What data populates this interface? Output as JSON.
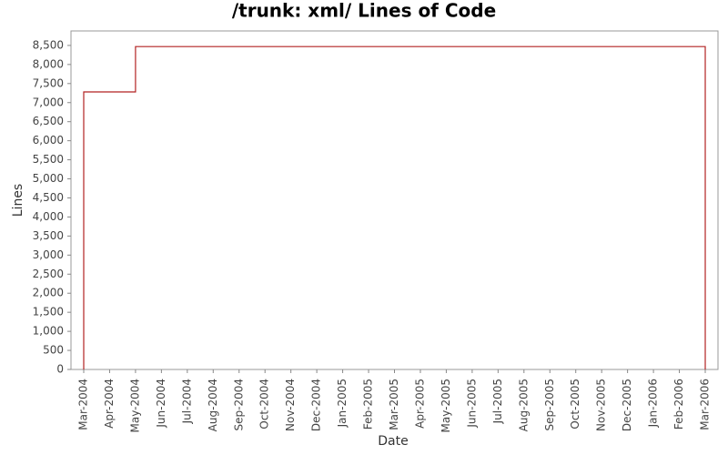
{
  "chart_data": {
    "type": "line",
    "title": "/trunk: xml/ Lines of Code",
    "x_label": "Date",
    "y_label": "Lines",
    "x": [
      "2004-03",
      "2004-03",
      "2004-05",
      "2004-05",
      "2006-03",
      "2006-03"
    ],
    "series": [
      {
        "name": "Lines",
        "color": "#b22222",
        "values": [
          0,
          7280,
          7280,
          8470,
          8470,
          0
        ]
      }
    ],
    "ylim": [
      0,
      8880
    ],
    "yticks": [
      0,
      500,
      {
        "value": 1000,
        "label": "1,000"
      },
      {
        "value": 1500,
        "label": "1,500"
      },
      {
        "value": 2000,
        "label": "2,000"
      },
      {
        "value": 2500,
        "label": "2,500"
      },
      {
        "value": 3000,
        "label": "3,000"
      },
      {
        "value": 3500,
        "label": "3,500"
      },
      {
        "value": 4000,
        "label": "4,000"
      },
      {
        "value": 4500,
        "label": "4,500"
      },
      {
        "value": 5000,
        "label": "5,000"
      },
      {
        "value": 5500,
        "label": "5,500"
      },
      {
        "value": 6000,
        "label": "6,000"
      },
      {
        "value": 6500,
        "label": "6,500"
      },
      {
        "value": 7000,
        "label": "7,000"
      },
      {
        "value": 7500,
        "label": "7,500"
      },
      {
        "value": 8000,
        "label": "8,000"
      },
      {
        "value": 8500,
        "label": "8,500"
      }
    ],
    "xticks": [
      {
        "value": "2004-03",
        "label": "Mar-2004"
      },
      {
        "value": "2004-04",
        "label": "Apr-2004"
      },
      {
        "value": "2004-05",
        "label": "May-2004"
      },
      {
        "value": "2004-06",
        "label": "Jun-2004"
      },
      {
        "value": "2004-07",
        "label": "Jul-2004"
      },
      {
        "value": "2004-08",
        "label": "Aug-2004"
      },
      {
        "value": "2004-09",
        "label": "Sep-2004"
      },
      {
        "value": "2004-10",
        "label": "Oct-2004"
      },
      {
        "value": "2004-11",
        "label": "Nov-2004"
      },
      {
        "value": "2004-12",
        "label": "Dec-2004"
      },
      {
        "value": "2005-01",
        "label": "Jan-2005"
      },
      {
        "value": "2005-02",
        "label": "Feb-2005"
      },
      {
        "value": "2005-03",
        "label": "Mar-2005"
      },
      {
        "value": "2005-04",
        "label": "Apr-2005"
      },
      {
        "value": "2005-05",
        "label": "May-2005"
      },
      {
        "value": "2005-06",
        "label": "Jun-2005"
      },
      {
        "value": "2005-07",
        "label": "Jul-2005"
      },
      {
        "value": "2005-08",
        "label": "Aug-2005"
      },
      {
        "value": "2005-09",
        "label": "Sep-2005"
      },
      {
        "value": "2005-10",
        "label": "Oct-2005"
      },
      {
        "value": "2005-11",
        "label": "Nov-2005"
      },
      {
        "value": "2005-12",
        "label": "Dec-2005"
      },
      {
        "value": "2006-01",
        "label": "Jan-2006"
      },
      {
        "value": "2006-02",
        "label": "Feb-2006"
      },
      {
        "value": "2006-03",
        "label": "Mar-2006"
      }
    ],
    "grid": false
  }
}
